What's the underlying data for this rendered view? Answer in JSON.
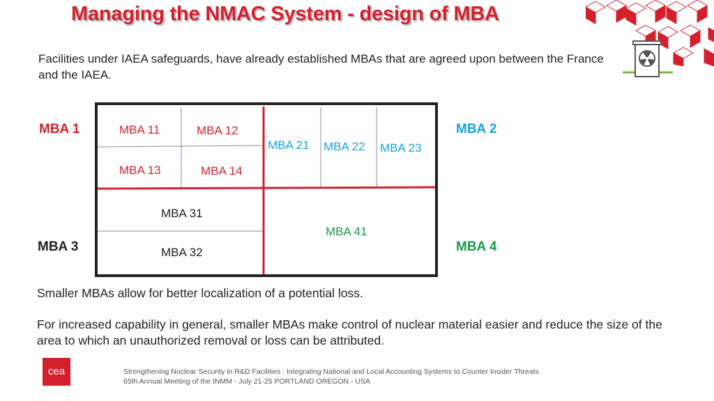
{
  "title": "Managing the NMAC System - design of MBA",
  "intro": "Facilities under IAEA safeguards, have already established MBAs that are agreed upon between the France and the IAEA.",
  "mba_labels": {
    "mba1": "MBA 1",
    "mba2": "MBA 2",
    "mba3": "MBA 3",
    "mba4": "MBA 4"
  },
  "cells": {
    "mba11": "MBA 11",
    "mba12": "MBA 12",
    "mba13": "MBA 13",
    "mba14": "MBA 14",
    "mba21": "MBA 21",
    "mba22": "MBA 22",
    "mba23": "MBA 23",
    "mba31": "MBA 31",
    "mba32": "MBA 32",
    "mba41": "MBA 41"
  },
  "colors": {
    "red": "#d4202c",
    "blue": "#1aa3d9",
    "green": "#1a9a4a",
    "dark": "#222222"
  },
  "paragraph1": "Smaller MBAs allow for better localization of a potential loss.",
  "paragraph2": "For increased capability in general, smaller MBAs make control of nuclear material easier and reduce the size of the area to which an unauthorized removal or loss can be attributed.",
  "footer": {
    "line1": "Strengthening Nuclear Security in R&D Facilities : Integrating National and Local Accounting Systems to Counter Insider Threats",
    "line2": "65th Annual Meeting of the INMM - July 21-25 PORTLAND OREGON - USA"
  },
  "logo_text": "cea",
  "icons": [
    "cube-pattern-decoration",
    "radioactive-container-icon",
    "cea-logo"
  ]
}
